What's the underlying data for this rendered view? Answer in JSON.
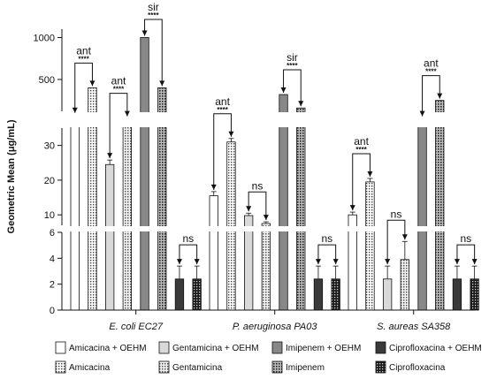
{
  "chart_data": {
    "type": "bar",
    "ylabel": "Geometric Mean (μg/mL)",
    "yaxis": {
      "broken": true,
      "segments": [
        {
          "ylim": [
            0,
            6
          ],
          "ticks": [
            "0",
            "2",
            "4",
            "6"
          ]
        },
        {
          "ylim": [
            7,
            35
          ],
          "ticks": [
            "10",
            "20",
            "30"
          ]
        },
        {
          "ylim": [
            120,
            1100
          ],
          "ticks": [
            "500",
            "1000"
          ]
        }
      ]
    },
    "groups": [
      "E. coli EC27",
      "P. aeruginosa PA03",
      "S. aureas SA358"
    ],
    "series": [
      {
        "name": "Amicacina + OEHM",
        "color": "#ffffff",
        "pattern": "none",
        "values": [
          80,
          15.5,
          10
        ],
        "errors": [
          null,
          1.2,
          0.8
        ]
      },
      {
        "name": "Amicacina",
        "color": "#ffffff",
        "pattern": "dots",
        "values": [
          400,
          31,
          19.5
        ],
        "errors": [
          null,
          1.0,
          1.0
        ]
      },
      {
        "name": "Gentamicina + OEHM",
        "color": "#d9d9d9",
        "pattern": "none",
        "values": [
          24.5,
          9.8,
          2.4
        ],
        "errors": [
          1.3,
          0.7,
          1.0
        ]
      },
      {
        "name": "Gentamicina",
        "color": "#d9d9d9",
        "pattern": "dots",
        "values": [
          40,
          7.5,
          3.9
        ],
        "errors": [
          null,
          0.5,
          1.4
        ]
      },
      {
        "name": "Imipenem + OEHM",
        "color": "#888888",
        "pattern": "none",
        "values": [
          1000,
          320,
          40
        ],
        "errors": [
          null,
          null,
          null
        ]
      },
      {
        "name": "Imipenem",
        "color": "#888888",
        "pattern": "dots",
        "values": [
          400,
          160,
          250
        ],
        "errors": [
          null,
          null,
          null
        ]
      },
      {
        "name": "Ciprofloxacina + OEHM",
        "color": "#3a3a3a",
        "pattern": "none",
        "values": [
          2.4,
          2.4,
          2.4
        ],
        "errors": [
          1.0,
          1.0,
          1.0
        ]
      },
      {
        "name": "Ciprofloxacina",
        "color": "#3a3a3a",
        "pattern": "dots",
        "values": [
          2.4,
          2.4,
          2.4
        ],
        "errors": [
          1.0,
          1.0,
          1.0
        ]
      }
    ],
    "annotations": [
      {
        "group": 0,
        "pair": 0,
        "label": "ant",
        "stars": "****"
      },
      {
        "group": 0,
        "pair": 1,
        "label": "ant",
        "stars": "****"
      },
      {
        "group": 0,
        "pair": 2,
        "label": "sir",
        "stars": "****"
      },
      {
        "group": 0,
        "pair": 3,
        "label": "ns",
        "stars": ""
      },
      {
        "group": 1,
        "pair": 0,
        "label": "ant",
        "stars": "****"
      },
      {
        "group": 1,
        "pair": 1,
        "label": "ns",
        "stars": ""
      },
      {
        "group": 1,
        "pair": 2,
        "label": "sir",
        "stars": "****"
      },
      {
        "group": 1,
        "pair": 3,
        "label": "ns",
        "stars": ""
      },
      {
        "group": 2,
        "pair": 0,
        "label": "ant",
        "stars": "****"
      },
      {
        "group": 2,
        "pair": 1,
        "label": "ns",
        "stars": ""
      },
      {
        "group": 2,
        "pair": 2,
        "label": "ant",
        "stars": "****"
      },
      {
        "group": 2,
        "pair": 3,
        "label": "ns",
        "stars": ""
      }
    ],
    "legend_position": "bottom",
    "grid": false
  }
}
